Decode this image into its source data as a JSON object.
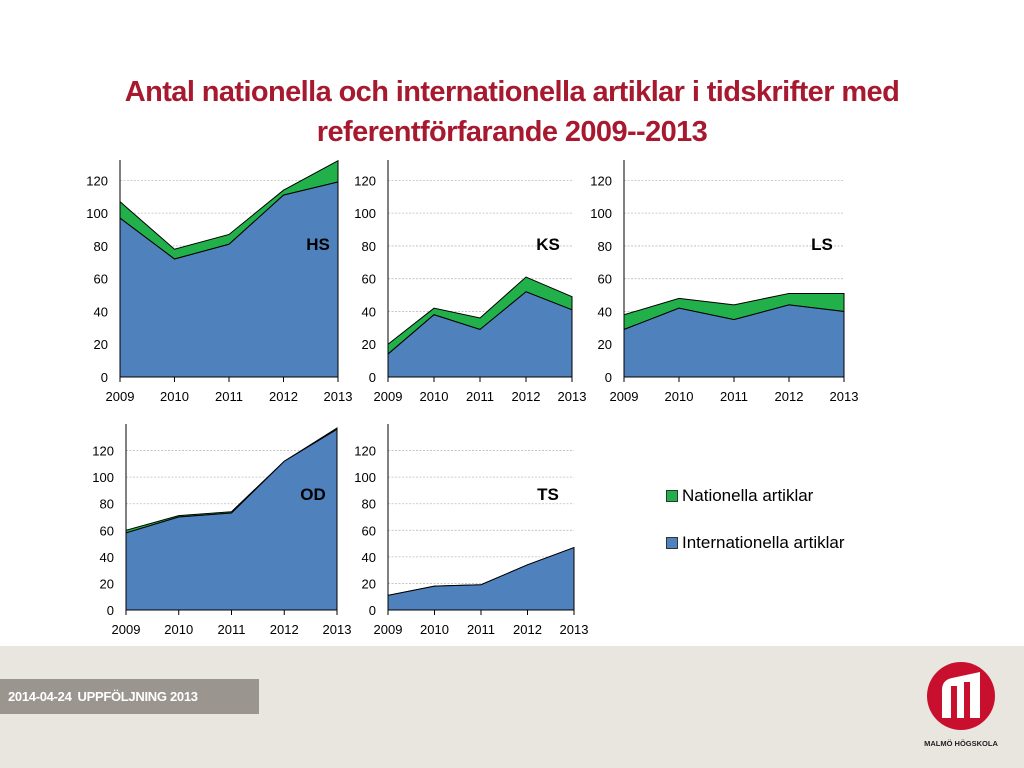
{
  "title": {
    "line1": "Antal nationella och internationella artiklar i tidskrifter med",
    "line2": "referentförfarande 2009--2013"
  },
  "footer": {
    "date": "2014-04-24",
    "label": "UPPFÖLJNING 2013"
  },
  "logo": {
    "text": "MALMÖ HÖGSKOLA",
    "color": "#c8102e"
  },
  "legend": {
    "items": [
      {
        "label": "Nationella artiklar",
        "color": "#22b04b"
      },
      {
        "label": "Internationella artiklar",
        "color": "#4f81bd"
      }
    ]
  },
  "colors": {
    "international": "#4f81bd",
    "national": "#22b04b",
    "title": "#a6192e"
  },
  "chart_data": [
    {
      "type": "area",
      "label": "HS",
      "categories": [
        "2009",
        "2010",
        "2011",
        "2012",
        "2013"
      ],
      "series": [
        {
          "name": "Internationella artiklar",
          "values": [
            97,
            72,
            81,
            111,
            119
          ]
        },
        {
          "name": "Nationella artiklar",
          "values": [
            10,
            6,
            6,
            3,
            13
          ]
        }
      ],
      "yticks": [
        0,
        20,
        40,
        60,
        80,
        100,
        120
      ],
      "ylim": [
        0,
        130
      ],
      "stacked": true,
      "grid": true
    },
    {
      "type": "area",
      "label": "KS",
      "categories": [
        "2009",
        "2010",
        "2011",
        "2012",
        "2013"
      ],
      "series": [
        {
          "name": "Internationella artiklar",
          "values": [
            14,
            38,
            29,
            52,
            41
          ]
        },
        {
          "name": "Nationella artiklar",
          "values": [
            6,
            4,
            7,
            9,
            8
          ]
        }
      ],
      "yticks": [
        0,
        20,
        40,
        60,
        80,
        100,
        120
      ],
      "ylim": [
        0,
        130
      ],
      "stacked": true,
      "grid": true
    },
    {
      "type": "area",
      "label": "LS",
      "categories": [
        "2009",
        "2010",
        "2011",
        "2012",
        "2013"
      ],
      "series": [
        {
          "name": "Internationella artiklar",
          "values": [
            29,
            42,
            35,
            44,
            40
          ]
        },
        {
          "name": "Nationella artiklar",
          "values": [
            9,
            6,
            9,
            7,
            11
          ]
        }
      ],
      "yticks": [
        0,
        20,
        40,
        60,
        80,
        100,
        120
      ],
      "ylim": [
        0,
        130
      ],
      "stacked": true,
      "grid": true
    },
    {
      "type": "area",
      "label": "OD",
      "categories": [
        "2009",
        "2010",
        "2011",
        "2012",
        "2013"
      ],
      "series": [
        {
          "name": "Internationella artiklar",
          "values": [
            58,
            70,
            73,
            112,
            136
          ]
        },
        {
          "name": "Nationella artiklar",
          "values": [
            2,
            1,
            1,
            0,
            1
          ]
        }
      ],
      "yticks": [
        0,
        20,
        40,
        60,
        80,
        100,
        120
      ],
      "ylim": [
        0,
        137
      ],
      "stacked": true,
      "grid": true
    },
    {
      "type": "area",
      "label": "TS",
      "categories": [
        "2009",
        "2010",
        "2011",
        "2012",
        "2013"
      ],
      "series": [
        {
          "name": "Internationella artiklar",
          "values": [
            11,
            18,
            19,
            34,
            47
          ]
        },
        {
          "name": "Nationella artiklar",
          "values": [
            0,
            0,
            0,
            0,
            0
          ]
        }
      ],
      "yticks": [
        0,
        20,
        40,
        60,
        80,
        100,
        120
      ],
      "ylim": [
        0,
        137
      ],
      "stacked": true,
      "grid": true
    }
  ]
}
